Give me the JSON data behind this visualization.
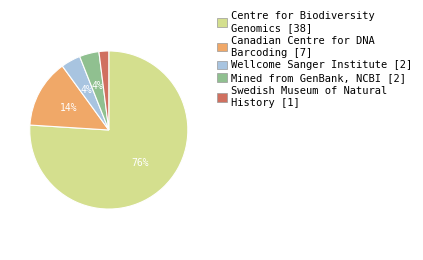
{
  "labels": [
    "Centre for Biodiversity\nGenomics [38]",
    "Canadian Centre for DNA\nBarcoding [7]",
    "Wellcome Sanger Institute [2]",
    "Mined from GenBank, NCBI [2]",
    "Swedish Museum of Natural\nHistory [1]"
  ],
  "values": [
    38,
    7,
    2,
    2,
    1
  ],
  "colors": [
    "#d4df8e",
    "#f0a868",
    "#a8c4e0",
    "#90c090",
    "#d07060"
  ],
  "background_color": "#ffffff",
  "text_color": "#ffffff",
  "fontsize_pct": 7,
  "fontsize_legend": 7.5,
  "startangle": 90
}
